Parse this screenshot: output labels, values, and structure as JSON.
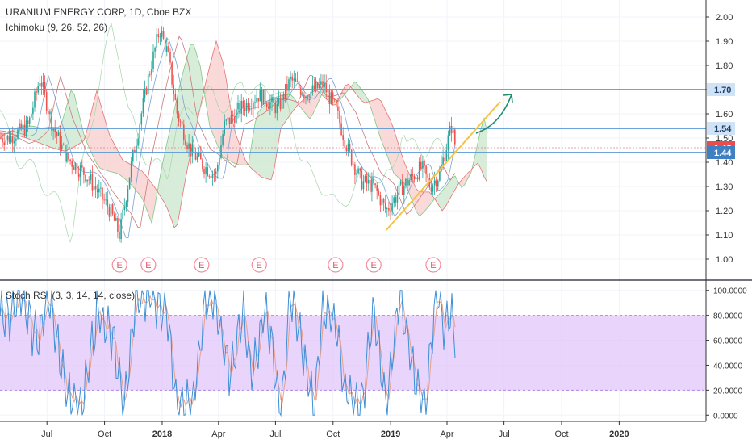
{
  "header": {
    "title": "URANIUM ENERGY CORP, 1D, Cboe BZX",
    "indicator": "Ichimoku (9, 26, 52, 26)",
    "oscillator": "Stoch RSI (3, 3, 14, 14, close)"
  },
  "colors": {
    "up": "#26a69a",
    "down": "#ef5350",
    "hline": "#5b9bd5",
    "trend": "#f6c343",
    "arrow": "#1e8c6e",
    "stoch_band": "#e1c6fb",
    "stoch_k": "#3d8fd6",
    "stoch_d": "#e8a08a",
    "price_red": "#e84c4c",
    "price_blue": "#3f7fc4"
  },
  "chart_data": [
    {
      "type": "candlestick",
      "name": "price",
      "y_range": [
        0.92,
        2.06
      ],
      "y_ticks": [
        "2.00",
        "1.90",
        "1.80",
        "1.70",
        "1.60",
        "1.50",
        "1.40",
        "1.30",
        "1.20",
        "1.10",
        "1.00"
      ],
      "x_ticks": [
        "Jul",
        "Oct",
        "2018",
        "Apr",
        "Jul",
        "Oct",
        "2019",
        "Apr",
        "Jul",
        "Oct",
        "2020"
      ],
      "horizontal_levels": [
        {
          "value": 1.7,
          "label": "1.70"
        },
        {
          "value": 1.54,
          "label": "1.54"
        },
        {
          "value": 1.44,
          "label": "1.44"
        }
      ],
      "last_price": {
        "value": 1.46,
        "label": "1.46"
      },
      "trendline": {
        "from": [
          "2018-12-25",
          1.12
        ],
        "to": [
          "2019-06-25",
          1.65
        ]
      },
      "earnings_markers": {
        "label": "E",
        "dates": [
          "2017-10-25",
          "2017-12-10",
          "2018-03-05",
          "2018-06-05",
          "2018-10-05",
          "2018-12-05",
          "2019-03-10"
        ]
      },
      "price_path": [
        [
          "2017-05-01",
          1.5
        ],
        [
          "2017-06-01",
          1.55
        ],
        [
          "2017-06-20",
          1.75
        ],
        [
          "2017-07-10",
          1.55
        ],
        [
          "2017-08-01",
          1.42
        ],
        [
          "2017-09-01",
          1.35
        ],
        [
          "2017-09-20",
          1.28
        ],
        [
          "2017-10-10",
          1.2
        ],
        [
          "2017-10-25",
          1.1
        ],
        [
          "2017-11-10",
          1.35
        ],
        [
          "2017-11-25",
          1.55
        ],
        [
          "2017-12-10",
          1.75
        ],
        [
          "2017-12-28",
          1.95
        ],
        [
          "2018-01-10",
          1.85
        ],
        [
          "2018-01-25",
          1.6
        ],
        [
          "2018-02-15",
          1.45
        ],
        [
          "2018-03-10",
          1.38
        ],
        [
          "2018-03-28",
          1.35
        ],
        [
          "2018-04-10",
          1.55
        ],
        [
          "2018-05-05",
          1.62
        ],
        [
          "2018-06-05",
          1.68
        ],
        [
          "2018-07-05",
          1.62
        ],
        [
          "2018-07-25",
          1.74
        ],
        [
          "2018-08-20",
          1.68
        ],
        [
          "2018-09-15",
          1.72
        ],
        [
          "2018-10-05",
          1.62
        ],
        [
          "2018-10-25",
          1.45
        ],
        [
          "2018-11-15",
          1.32
        ],
        [
          "2018-12-05",
          1.3
        ],
        [
          "2018-12-25",
          1.2
        ],
        [
          "2019-01-20",
          1.3
        ],
        [
          "2019-02-20",
          1.38
        ],
        [
          "2019-03-05",
          1.3
        ],
        [
          "2019-03-20",
          1.35
        ],
        [
          "2019-04-08",
          1.55
        ],
        [
          "2019-04-15",
          1.46
        ]
      ]
    },
    {
      "type": "line",
      "name": "stoch_rsi",
      "title": "Stoch RSI (3, 3, 14, 14, close)",
      "y_range": [
        -5,
        105
      ],
      "y_ticks": [
        "100.0000",
        "80.0000",
        "60.0000",
        "40.0000",
        "20.0000",
        "0.0000"
      ],
      "band": [
        20,
        80
      ],
      "series": [
        {
          "name": "K",
          "color": "#3d8fd6"
        },
        {
          "name": "D",
          "color": "#e8a08a"
        }
      ],
      "k_path": [
        [
          "2017-05-01",
          80
        ],
        [
          "2017-05-20",
          95
        ],
        [
          "2017-06-15",
          60
        ],
        [
          "2017-07-05",
          95
        ],
        [
          "2017-08-01",
          20
        ],
        [
          "2017-08-25",
          2
        ],
        [
          "2017-09-20",
          85
        ],
        [
          "2017-10-15",
          60
        ],
        [
          "2017-11-01",
          3
        ],
        [
          "2017-11-20",
          95
        ],
        [
          "2017-12-10",
          98
        ],
        [
          "2018-01-10",
          80
        ],
        [
          "2018-01-25",
          3
        ],
        [
          "2018-02-20",
          10
        ],
        [
          "2018-03-10",
          90
        ],
        [
          "2018-03-25",
          92
        ],
        [
          "2018-04-20",
          30
        ],
        [
          "2018-05-10",
          85
        ],
        [
          "2018-05-25",
          30
        ],
        [
          "2018-06-15",
          90
        ],
        [
          "2018-07-10",
          2
        ],
        [
          "2018-07-25",
          98
        ],
        [
          "2018-08-10",
          60
        ],
        [
          "2018-09-01",
          2
        ],
        [
          "2018-09-15",
          90
        ],
        [
          "2018-10-05",
          75
        ],
        [
          "2018-10-20",
          20
        ],
        [
          "2018-11-15",
          5
        ],
        [
          "2018-12-05",
          85
        ],
        [
          "2018-12-25",
          3
        ],
        [
          "2019-01-15",
          98
        ],
        [
          "2019-02-05",
          40
        ],
        [
          "2019-02-25",
          3
        ],
        [
          "2019-03-15",
          100
        ],
        [
          "2019-03-28",
          70
        ],
        [
          "2019-04-08",
          85
        ],
        [
          "2019-04-15",
          58
        ]
      ]
    }
  ]
}
